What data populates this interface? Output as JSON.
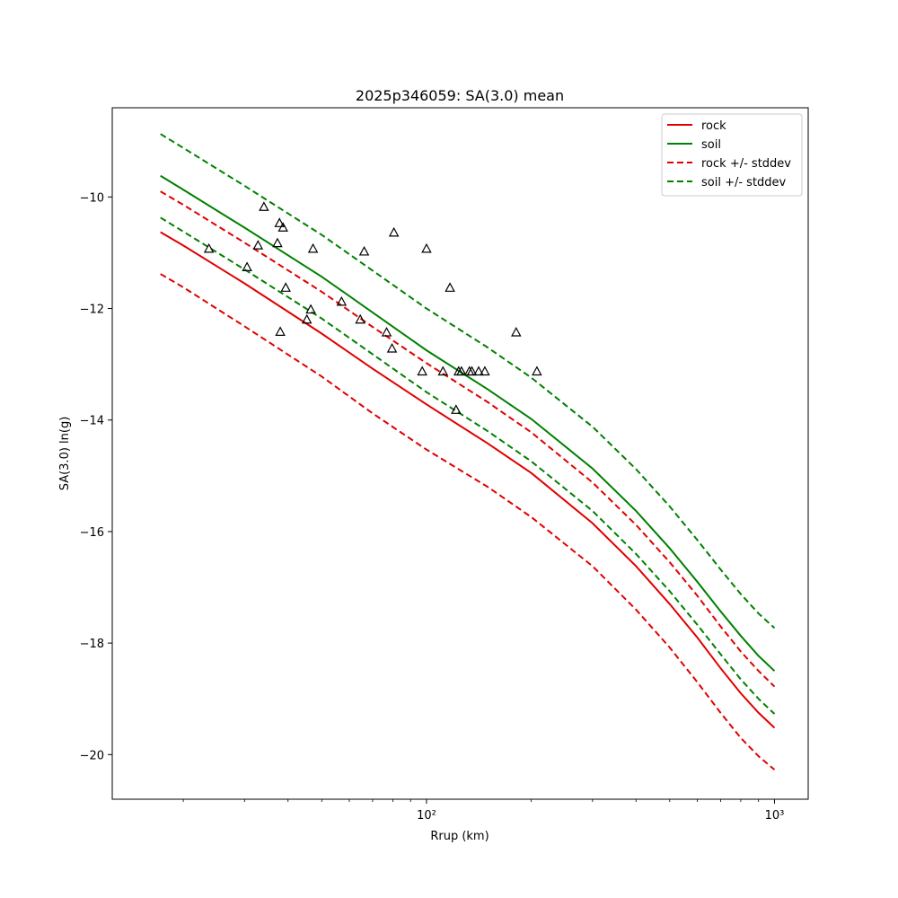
{
  "chart_data": {
    "type": "line",
    "title": "2025p346059: SA(3.0) mean",
    "xlabel": "Rrup (km)",
    "ylabel": "SA(3.0) ln(g)",
    "x_scale": "log",
    "xlim": [
      12.5,
      1250
    ],
    "ylim": [
      -20.8,
      -8.4
    ],
    "x_ticks": [
      100,
      1000
    ],
    "x_tick_labels": [
      "10²",
      "10³"
    ],
    "y_ticks": [
      -10,
      -12,
      -14,
      -16,
      -18,
      -20
    ],
    "y_tick_labels": [
      "−10",
      "−12",
      "−14",
      "−16",
      "−18",
      "−20"
    ],
    "grid": false,
    "legend_position": "top-right",
    "colors": {
      "rock": "#e00000",
      "soil": "#008000",
      "observed": "#000000"
    },
    "x": [
      17.2,
      20,
      30,
      50,
      70,
      100,
      150,
      200,
      300,
      400,
      500,
      600,
      700,
      800,
      900,
      1000
    ],
    "series": [
      {
        "name": "rock",
        "style": "solid",
        "color": "#e00000",
        "values": [
          -10.63,
          -10.87,
          -11.55,
          -12.45,
          -13.08,
          -13.72,
          -14.42,
          -14.95,
          -15.85,
          -16.62,
          -17.3,
          -17.9,
          -18.45,
          -18.9,
          -19.25,
          -19.52
        ]
      },
      {
        "name": "soil",
        "style": "solid",
        "color": "#008000",
        "values": [
          -9.62,
          -9.87,
          -10.55,
          -11.43,
          -12.07,
          -12.75,
          -13.45,
          -13.98,
          -14.87,
          -15.63,
          -16.3,
          -16.9,
          -17.43,
          -17.87,
          -18.23,
          -18.5
        ]
      },
      {
        "name": "rock +/- stddev",
        "style": "dashed",
        "color": "#e00000",
        "values": [
          -9.9,
          -10.14,
          -10.82,
          -11.7,
          -12.33,
          -12.98,
          -13.68,
          -14.22,
          -15.12,
          -15.88,
          -16.55,
          -17.15,
          -17.7,
          -18.15,
          -18.5,
          -18.78
        ]
      },
      {
        "name": "rock +/- stddev",
        "style": "dashed",
        "color": "#e00000",
        "legend": false,
        "values": [
          -11.38,
          -11.62,
          -12.32,
          -13.22,
          -13.88,
          -14.53,
          -15.2,
          -15.74,
          -16.62,
          -17.4,
          -18.08,
          -18.7,
          -19.25,
          -19.7,
          -20.03,
          -20.27
        ]
      },
      {
        "name": "soil +/- stddev",
        "style": "dashed",
        "color": "#008000",
        "values": [
          -8.87,
          -9.12,
          -9.8,
          -10.68,
          -11.32,
          -12.0,
          -12.7,
          -13.24,
          -14.12,
          -14.88,
          -15.55,
          -16.15,
          -16.68,
          -17.12,
          -17.47,
          -17.73
        ]
      },
      {
        "name": "soil +/- stddev",
        "style": "dashed",
        "color": "#008000",
        "legend": false,
        "values": [
          -10.37,
          -10.62,
          -11.3,
          -12.18,
          -12.82,
          -13.5,
          -14.2,
          -14.74,
          -15.63,
          -16.4,
          -17.07,
          -17.67,
          -18.2,
          -18.65,
          -19.0,
          -19.27
        ]
      }
    ],
    "observations": {
      "marker": "open-triangle",
      "points": [
        [
          23.7,
          -10.93
        ],
        [
          30.5,
          -11.26
        ],
        [
          32.8,
          -10.87
        ],
        [
          34.1,
          -10.18
        ],
        [
          37.3,
          -10.83
        ],
        [
          37.8,
          -10.47
        ],
        [
          38.0,
          -12.42
        ],
        [
          38.7,
          -10.55
        ],
        [
          39.4,
          -11.63
        ],
        [
          45.3,
          -12.2
        ],
        [
          46.5,
          -12.02
        ],
        [
          47.2,
          -10.93
        ],
        [
          57.0,
          -11.88
        ],
        [
          64.5,
          -12.2
        ],
        [
          66.2,
          -10.98
        ],
        [
          76.8,
          -12.43
        ],
        [
          79.6,
          -12.72
        ],
        [
          80.6,
          -10.64
        ],
        [
          97.2,
          -13.13
        ],
        [
          100.0,
          -10.93
        ],
        [
          111.5,
          -13.13
        ],
        [
          116.8,
          -11.63
        ],
        [
          121.6,
          -13.82
        ],
        [
          123.7,
          -13.13
        ],
        [
          126.0,
          -13.13
        ],
        [
          132.8,
          -13.13
        ],
        [
          135.0,
          -13.13
        ],
        [
          141.2,
          -13.13
        ],
        [
          147.1,
          -13.13
        ],
        [
          181.0,
          -12.43
        ],
        [
          207.6,
          -13.13
        ]
      ]
    }
  }
}
